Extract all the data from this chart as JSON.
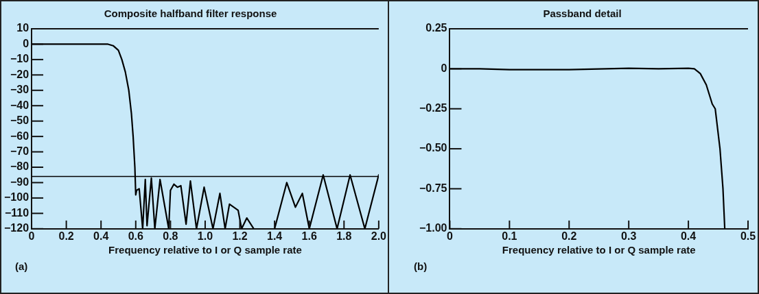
{
  "chart_data": [
    {
      "type": "line",
      "title": "Composite halfband filter response",
      "xlabel": "Frequency relative to I or Q sample rate",
      "annotations": [
        "(a)"
      ],
      "marker": "none",
      "line_style": "solid",
      "xlim": [
        0,
        2.0
      ],
      "xticks": [
        0,
        0.2,
        0.4,
        0.6,
        0.8,
        {
          "value": 1.0,
          "label": "1.0"
        },
        1.2,
        1.4,
        1.6,
        1.8,
        {
          "value": 2.0,
          "label": "2.0"
        }
      ],
      "ylim": [
        -120,
        10
      ],
      "yticks": [
        10,
        0,
        {
          "value": -10,
          "label": "−10"
        },
        {
          "value": -20,
          "label": "−20"
        },
        {
          "value": -30,
          "label": "−30"
        },
        {
          "value": -40,
          "label": "−40"
        },
        {
          "value": -50,
          "label": "−50"
        },
        {
          "value": -60,
          "label": "−60"
        },
        {
          "value": -70,
          "label": "−70"
        },
        {
          "value": -80,
          "label": "−80"
        },
        {
          "value": -90,
          "label": "−90"
        },
        {
          "value": -100,
          "label": "−100"
        },
        {
          "value": -110,
          "label": "−110"
        },
        {
          "value": -120,
          "label": "−120"
        }
      ],
      "ref_lines": [
        {
          "axis": "y",
          "value": -86,
          "color": "#000000"
        }
      ],
      "x": [
        0,
        0.2,
        0.44,
        0.47,
        0.5,
        0.52,
        0.54,
        0.56,
        0.575,
        0.585,
        0.595,
        0.6,
        0.605,
        0.62,
        0.64,
        0.655,
        0.665,
        0.69,
        0.71,
        0.74,
        0.79,
        0.8,
        0.82,
        0.84,
        0.86,
        0.89,
        0.915,
        0.95,
        0.994,
        1.045,
        1.085,
        1.115,
        1.14,
        1.19,
        1.21,
        1.24,
        1.28,
        1.34,
        1.4,
        1.47,
        1.52,
        1.56,
        1.6,
        1.68,
        1.76,
        1.835,
        1.92,
        2.0
      ],
      "series": [
        {
          "color": "#000000",
          "values": [
            0,
            0,
            0,
            -1,
            -4,
            -10,
            -18,
            -30,
            -45,
            -60,
            -80,
            -98,
            -95,
            -94,
            -120,
            -88,
            -118,
            -87,
            -120,
            -88,
            -120,
            -95,
            -91,
            -93,
            -92,
            -117,
            -89,
            -120,
            -93,
            -120,
            -97,
            -120,
            -104,
            -108,
            -120,
            -113,
            -120,
            null,
            -120,
            -90,
            -106,
            -97,
            -120,
            -85,
            -120,
            -85,
            -120,
            -85
          ]
        }
      ]
    },
    {
      "type": "line",
      "title": "Passband detail",
      "xlabel": "Frequency relative to I or Q sample rate",
      "annotations": [
        "(b)"
      ],
      "marker": "none",
      "line_style": "solid",
      "xlim": [
        0,
        0.5
      ],
      "xticks": [
        0,
        0.1,
        0.2,
        0.3,
        0.4,
        0.5
      ],
      "ylim": [
        -1,
        0.25
      ],
      "yticks": [
        0.25,
        0,
        {
          "value": -0.25,
          "label": "−0.25"
        },
        {
          "value": -0.5,
          "label": "−0.50"
        },
        {
          "value": -0.75,
          "label": "−0.75"
        },
        {
          "value": -1,
          "label": "−1.00"
        }
      ],
      "x": [
        0,
        0.05,
        0.1,
        0.2,
        0.3,
        0.35,
        0.4,
        0.41,
        0.42,
        0.43,
        0.44,
        0.445,
        0.453,
        0.458,
        0.461
      ],
      "series": [
        {
          "color": "#000000",
          "values": [
            0,
            0,
            -0.005,
            -0.005,
            0.003,
            0,
            0.003,
            0,
            -0.03,
            -0.1,
            -0.22,
            -0.25,
            -0.5,
            -0.75,
            -1.0
          ]
        }
      ]
    }
  ]
}
